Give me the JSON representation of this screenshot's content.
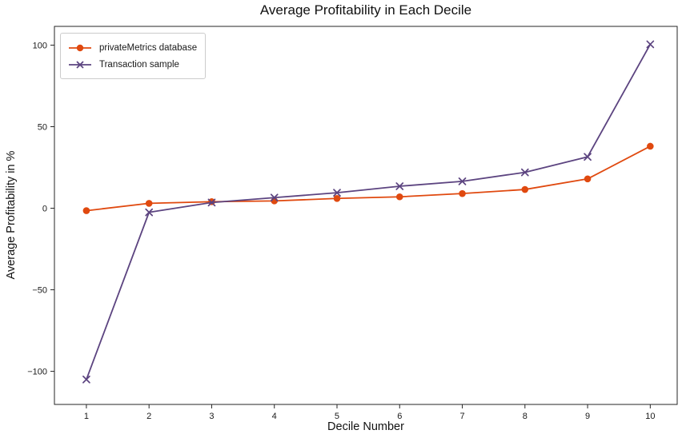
{
  "figure": {
    "title": "Average Profitability in Each Decile",
    "xlabel": "Decile Number",
    "ylabel": "Average Profitability in %"
  },
  "chart_data": {
    "type": "line",
    "title": "Average Profitability in Each Decile",
    "xlabel": "Decile Number",
    "ylabel": "Average Profitability in %",
    "x": [
      1,
      2,
      3,
      4,
      5,
      6,
      7,
      8,
      9,
      10
    ],
    "series": [
      {
        "name": "privateMetrics database",
        "color": "#e0490f",
        "marker": "circle",
        "values": [
          -1.5,
          3,
          4,
          4.5,
          6,
          7,
          9,
          11.5,
          18,
          38
        ]
      },
      {
        "name": "Transaction sample",
        "color": "#5c4480",
        "marker": "x",
        "values": [
          -105,
          -2.5,
          3.5,
          6.5,
          9.5,
          13.5,
          16.5,
          22,
          31.5,
          100.5
        ]
      }
    ],
    "xticks": [
      1,
      2,
      3,
      4,
      5,
      6,
      7,
      8,
      9,
      10
    ],
    "yticks": [
      -100,
      -50,
      0,
      50,
      100
    ],
    "xlim": [
      0.49,
      10.43
    ],
    "ylim": [
      -120.3,
      111.5
    ],
    "grid": false,
    "legend_position": "upper-left"
  }
}
